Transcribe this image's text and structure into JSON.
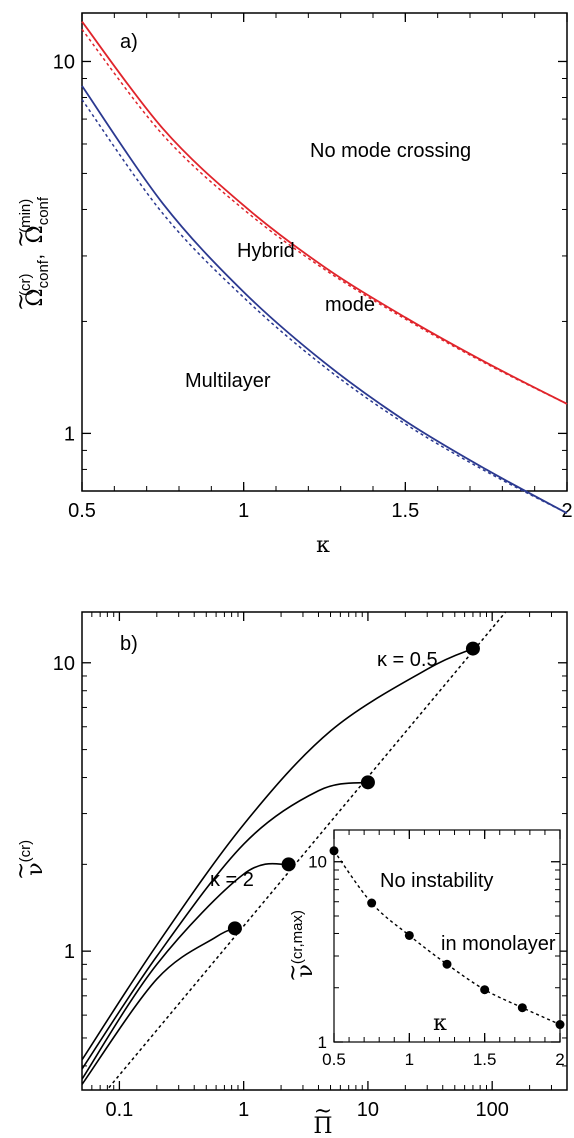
{
  "chart_data": [
    {
      "type": "line",
      "panel_label": "a)",
      "xlabel": "κ",
      "ylabel": {
        "base": "Ω",
        "tilde": "~",
        "sub": "conf",
        "sup": "(cr)",
        "sep": ",",
        "base2": "Ω",
        "sub2": "conf",
        "sup2": "(min)"
      },
      "xlim": [
        0.5,
        2
      ],
      "ylim": [
        0.7,
        13.5
      ],
      "yscale": "log",
      "xticks": [
        0.5,
        1,
        1.5,
        2
      ],
      "xtick_labels": [
        "0.5",
        "1",
        "1.5",
        "2"
      ],
      "yticks": [
        1,
        10
      ],
      "ytick_labels": [
        "1",
        "10"
      ],
      "annotations": [
        "No mode crossing",
        "Hybrid",
        "mode",
        "Multilayer"
      ],
      "colors": {
        "red": "#e0242b",
        "blue": "#2b3990"
      },
      "series": [
        {
          "style": "red-solid",
          "x": [
            0.5,
            0.75,
            1.0,
            1.25,
            1.5,
            1.75,
            2.0
          ],
          "y": [
            12.8,
            6.6,
            4.1,
            2.8,
            2.05,
            1.55,
            1.2
          ]
        },
        {
          "style": "red-dotted",
          "x": [
            0.5,
            0.75,
            1.0,
            1.25,
            1.5,
            1.75,
            2.0
          ],
          "y": [
            12.2,
            6.35,
            4.0,
            2.76,
            2.03,
            1.54,
            1.2
          ]
        },
        {
          "style": "blue-solid",
          "x": [
            0.5,
            0.75,
            1.0,
            1.25,
            1.5,
            1.75,
            2.0
          ],
          "y": [
            8.6,
            4.15,
            2.4,
            1.55,
            1.08,
            0.8,
            0.61
          ]
        },
        {
          "style": "blue-dotted",
          "x": [
            0.5,
            0.75,
            1.0,
            1.25,
            1.5,
            1.75,
            2.0
          ],
          "y": [
            7.9,
            3.9,
            2.32,
            1.51,
            1.06,
            0.79,
            0.61
          ]
        }
      ]
    },
    {
      "type": "line",
      "panel_label": "b)",
      "xlabel": "Π",
      "ylabel": {
        "base": "ν",
        "tilde": "~",
        "sup": "(cr)"
      },
      "xscale": "log",
      "yscale": "log",
      "xlim": [
        0.05,
        400
      ],
      "ylim": [
        0.33,
        15
      ],
      "xticks": [
        0.1,
        1,
        10,
        100
      ],
      "xtick_labels": [
        "0.1",
        "1",
        "10",
        "100"
      ],
      "yticks": [
        1,
        10
      ],
      "ytick_labels": [
        "1",
        "10"
      ],
      "annotations": [
        "κ = 0.5",
        "κ = 2"
      ],
      "series": [
        {
          "style": "solid",
          "x": [
            0.05,
            0.2,
            1,
            5,
            30,
            70
          ],
          "y": [
            0.42,
            1.05,
            2.75,
            5.8,
            9.5,
            11.2
          ]
        },
        {
          "style": "solid",
          "x": [
            0.05,
            0.2,
            1,
            4,
            10
          ],
          "y": [
            0.39,
            0.96,
            2.35,
            3.6,
            3.85
          ]
        },
        {
          "style": "solid",
          "x": [
            0.05,
            0.2,
            1,
            2.3
          ],
          "y": [
            0.36,
            0.9,
            1.85,
            2.0
          ]
        },
        {
          "style": "solid",
          "x": [
            0.05,
            0.2,
            0.6,
            0.85
          ],
          "y": [
            0.345,
            0.8,
            1.12,
            1.2
          ]
        },
        {
          "style": "dotted",
          "x": [
            0.05,
            400
          ],
          "y": [
            0.26,
            27
          ]
        }
      ],
      "points": {
        "x": [
          0.85,
          2.3,
          10,
          70
        ],
        "y": [
          1.2,
          2.0,
          3.85,
          11.2
        ]
      },
      "inset": {
        "xlabel": "κ",
        "ylabel": {
          "base": "ν",
          "tilde": "~",
          "sup": "(cr,max)"
        },
        "xlim": [
          0.5,
          2
        ],
        "ylim": [
          1,
          15
        ],
        "yscale": "log",
        "xticks": [
          0.5,
          1,
          1.5,
          2
        ],
        "xtick_labels": [
          "0.5",
          "1",
          "1.5",
          "2"
        ],
        "yticks": [
          1,
          10
        ],
        "ytick_labels": [
          "1",
          "10"
        ],
        "annotations": [
          "No instability",
          "in monolayer"
        ],
        "points": {
          "x": [
            0.5,
            0.75,
            1.0,
            1.25,
            1.5,
            1.75,
            2.0
          ],
          "y": [
            11.5,
            5.9,
            3.9,
            2.7,
            1.95,
            1.55,
            1.25
          ]
        }
      }
    }
  ]
}
